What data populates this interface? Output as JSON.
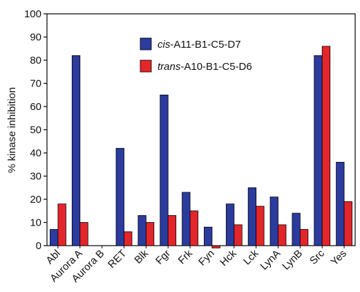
{
  "chart_data": {
    "type": "bar",
    "y_label": "% kinase inhibition",
    "categories": [
      "Abl",
      "Aurora A",
      "Aurora B",
      "RET",
      "Blk",
      "Fgr",
      "Frk",
      "Fyn",
      "Hck",
      "Lck",
      "LynA",
      "LynB",
      "Src",
      "Yes"
    ],
    "series": [
      {
        "name": "cis-A11-B1-C5-D7",
        "color": "#2b3c9e",
        "values": [
          7,
          82,
          0,
          42,
          13,
          65,
          23,
          8,
          18,
          25,
          21,
          14,
          82,
          36
        ]
      },
      {
        "name": "trans-A10-B1-C5-D6",
        "color": "#e3262a",
        "values": [
          18,
          10,
          0,
          6,
          10,
          13,
          15,
          -1,
          9,
          17,
          9,
          7,
          86,
          19
        ]
      }
    ],
    "ylim": [
      0,
      100
    ],
    "yticks": [
      0,
      10,
      20,
      30,
      40,
      50,
      60,
      70,
      80,
      90,
      100
    ],
    "legend": "upper center"
  }
}
